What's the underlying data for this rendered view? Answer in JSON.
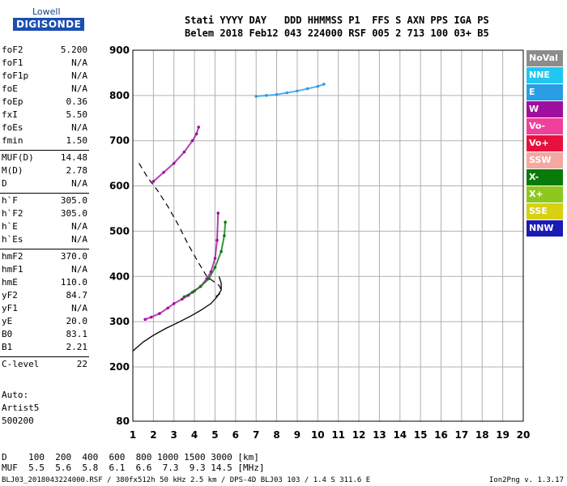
{
  "logo": {
    "line1": "Lowell",
    "line2": "DIGISONDE"
  },
  "header": {
    "line1": "Stati YYYY DAY   DDD HHMMSS P1  FFS S AXN PPS IGA PS",
    "line2": "Belem 2018 Feb12 043 224000 RSF 005 2 713 100 03+ B5"
  },
  "params": {
    "group1": [
      {
        "name": "foF2",
        "value": "5.200"
      },
      {
        "name": "foF1",
        "value": "N/A"
      },
      {
        "name": "foF1p",
        "value": "N/A"
      },
      {
        "name": "foE",
        "value": "N/A"
      },
      {
        "name": "foEp",
        "value": "0.36"
      },
      {
        "name": "fxI",
        "value": "5.50"
      },
      {
        "name": "foEs",
        "value": "N/A"
      },
      {
        "name": "fmin",
        "value": "1.50"
      }
    ],
    "group2": [
      {
        "name": "MUF(D)",
        "value": "14.48"
      },
      {
        "name": "M(D)",
        "value": "2.78"
      },
      {
        "name": "D",
        "value": "N/A"
      }
    ],
    "group3": [
      {
        "name": "h`F",
        "value": "305.0"
      },
      {
        "name": "h`F2",
        "value": "305.0"
      },
      {
        "name": "h`E",
        "value": "N/A"
      },
      {
        "name": "h`Es",
        "value": "N/A"
      }
    ],
    "group4": [
      {
        "name": "hmF2",
        "value": "370.0"
      },
      {
        "name": "hmF1",
        "value": "N/A"
      },
      {
        "name": "hmE",
        "value": "110.0"
      },
      {
        "name": "yF2",
        "value": "84.7"
      },
      {
        "name": "yF1",
        "value": "N/A"
      },
      {
        "name": "yE",
        "value": "20.0"
      },
      {
        "name": "B0",
        "value": "83.1"
      },
      {
        "name": "B1",
        "value": "2.21"
      }
    ],
    "group5": [
      {
        "name": "C-level",
        "value": "22"
      }
    ]
  },
  "auto": {
    "line1": "Auto:",
    "line2": "Artist5",
    "line3": "500200"
  },
  "legend": [
    {
      "label": "NoVal",
      "color": "#8c8c8c"
    },
    {
      "label": "NNE",
      "color": "#1ec8f0"
    },
    {
      "label": "E",
      "color": "#2a9de6"
    },
    {
      "label": "W",
      "color": "#a0109e"
    },
    {
      "label": "Vo-",
      "color": "#f0409a"
    },
    {
      "label": "Vo+",
      "color": "#e8103c"
    },
    {
      "label": "SSW",
      "color": "#f4a8a0"
    },
    {
      "label": "X-",
      "color": "#0a7a0a"
    },
    {
      "label": "X+",
      "color": "#8ec81e"
    },
    {
      "label": "SSE",
      "color": "#d8d010"
    },
    {
      "label": "NNW",
      "color": "#1a1ab4"
    }
  ],
  "dist_table": {
    "line1": "D    100  200  400  600  800 1000 1500 3000 [km]",
    "line2": "MUF  5.5  5.6  5.8  6.1  6.6  7.3  9.3 14.5 [MHz]"
  },
  "footer": {
    "left": "BLJ03_2018043224000.RSF / 380fx512h 50 kHz 2.5 km / DPS-4D BLJ03 103 / 1.4 S 311.6 E",
    "right": "Ion2Png v. 1.3.17"
  },
  "chart_data": {
    "type": "scatter",
    "xlim": [
      1,
      20
    ],
    "ylim": [
      80,
      900
    ],
    "xticks": [
      1,
      2,
      3,
      4,
      5,
      6,
      7,
      8,
      9,
      10,
      11,
      12,
      13,
      14,
      15,
      16,
      17,
      18,
      19,
      20
    ],
    "yticks": [
      80,
      200,
      300,
      400,
      500,
      600,
      700,
      800,
      900
    ],
    "grid": true,
    "traces": [
      {
        "name": "o-trace",
        "color": "#a0109e",
        "x": [
          1.6,
          1.9,
          2.3,
          2.7,
          3.0,
          3.4,
          3.7,
          4.0,
          4.3,
          4.6,
          4.8,
          5.0,
          5.1,
          5.15
        ],
        "y": [
          305,
          310,
          318,
          330,
          340,
          350,
          358,
          368,
          378,
          395,
          410,
          440,
          480,
          540
        ]
      },
      {
        "name": "x-trace",
        "color": "#0a7a0a",
        "x": [
          3.5,
          3.9,
          4.3,
          4.7,
          5.0,
          5.3,
          5.45,
          5.5
        ],
        "y": [
          355,
          365,
          378,
          395,
          420,
          455,
          490,
          520
        ]
      },
      {
        "name": "mult-o",
        "color": "#a0109e",
        "x": [
          2.0,
          2.5,
          3.0,
          3.5,
          3.9,
          4.1,
          4.2
        ],
        "y": [
          610,
          630,
          650,
          675,
          700,
          715,
          730
        ]
      },
      {
        "name": "top-band",
        "color": "#2a9de6",
        "x": [
          7.0,
          7.5,
          8.0,
          8.5,
          9.0,
          9.5,
          10.0,
          10.3
        ],
        "y": [
          798,
          800,
          802,
          806,
          810,
          815,
          820,
          825
        ]
      }
    ],
    "profile_solid": {
      "x": [
        1.0,
        1.5,
        2.0,
        2.6,
        3.2,
        3.8,
        4.3,
        4.8,
        5.1,
        5.3,
        5.3,
        5.2
      ],
      "y": [
        235,
        255,
        270,
        285,
        298,
        312,
        325,
        340,
        355,
        370,
        385,
        400
      ]
    },
    "profile_dashed": {
      "x": [
        1.3,
        1.7,
        2.2,
        2.7,
        3.2,
        3.7,
        4.2,
        4.6,
        4.9,
        5.2,
        5.3,
        5.2,
        5.0
      ],
      "y": [
        650,
        620,
        590,
        555,
        515,
        470,
        430,
        400,
        390,
        380,
        370,
        360,
        355
      ]
    }
  }
}
